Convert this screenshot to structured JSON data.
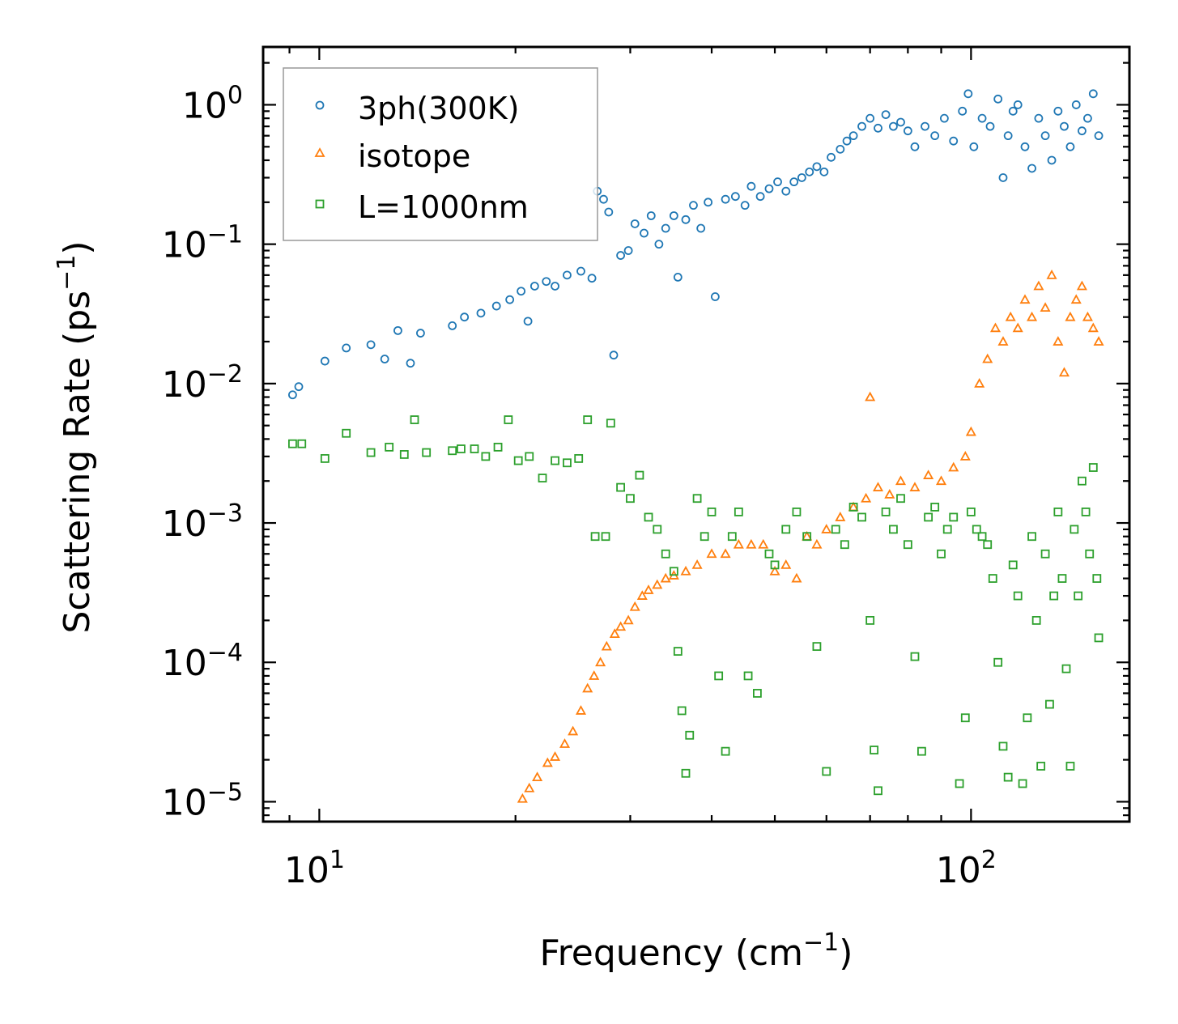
{
  "chart_data": {
    "type": "scatter",
    "title": "",
    "xlabel": "Frequency (cm",
    "xlabel_sup": "−1",
    "xlabel_tail": ")",
    "ylabel": "Scattering Rate (ps",
    "ylabel_sup": "−1",
    "ylabel_tail": ")",
    "xscale": "log",
    "yscale": "log",
    "xlim": [
      8.2,
      175
    ],
    "ylim": [
      7.2e-06,
      2.6
    ],
    "x_ticks": [
      {
        "value": 10,
        "base": "10",
        "exp": "1"
      },
      {
        "value": 100,
        "base": "10",
        "exp": "2"
      }
    ],
    "y_ticks": [
      {
        "value": 1,
        "base": "10",
        "exp": "0"
      },
      {
        "value": 0.1,
        "base": "10",
        "exp": "−1"
      },
      {
        "value": 0.01,
        "base": "10",
        "exp": "−2"
      },
      {
        "value": 0.001,
        "base": "10",
        "exp": "−3"
      },
      {
        "value": 0.0001,
        "base": "10",
        "exp": "−4"
      },
      {
        "value": 1e-05,
        "base": "10",
        "exp": "−5"
      }
    ],
    "legend_position": "top-left",
    "grid": false,
    "series": [
      {
        "name": "3ph(300K)",
        "marker": "circle",
        "color": "#1f77b4",
        "points": [
          [
            9.1,
            0.0083
          ],
          [
            9.3,
            0.0095
          ],
          [
            10.2,
            0.0145
          ],
          [
            11.0,
            0.018
          ],
          [
            12.0,
            0.019
          ],
          [
            12.6,
            0.015
          ],
          [
            13.2,
            0.024
          ],
          [
            13.8,
            0.014
          ],
          [
            14.3,
            0.023
          ],
          [
            16.0,
            0.026
          ],
          [
            16.7,
            0.03
          ],
          [
            17.7,
            0.032
          ],
          [
            18.7,
            0.036
          ],
          [
            19.6,
            0.04
          ],
          [
            20.4,
            0.046
          ],
          [
            20.9,
            0.028
          ],
          [
            21.4,
            0.05
          ],
          [
            22.3,
            0.054
          ],
          [
            23.0,
            0.05
          ],
          [
            24.0,
            0.06
          ],
          [
            25.2,
            0.064
          ],
          [
            26.2,
            0.057
          ],
          [
            26.7,
            0.24
          ],
          [
            27.3,
            0.21
          ],
          [
            27.8,
            0.17
          ],
          [
            28.3,
            0.016
          ],
          [
            29.0,
            0.083
          ],
          [
            29.8,
            0.09
          ],
          [
            30.5,
            0.14
          ],
          [
            31.5,
            0.12
          ],
          [
            32.3,
            0.16
          ],
          [
            33.2,
            0.1
          ],
          [
            34.0,
            0.13
          ],
          [
            35.0,
            0.16
          ],
          [
            35.5,
            0.058
          ],
          [
            36.5,
            0.15
          ],
          [
            37.5,
            0.19
          ],
          [
            38.5,
            0.13
          ],
          [
            39.5,
            0.2
          ],
          [
            40.5,
            0.042
          ],
          [
            42.0,
            0.21
          ],
          [
            43.5,
            0.22
          ],
          [
            45.0,
            0.19
          ],
          [
            46.0,
            0.26
          ],
          [
            47.5,
            0.22
          ],
          [
            49.0,
            0.25
          ],
          [
            50.5,
            0.28
          ],
          [
            52.0,
            0.24
          ],
          [
            53.5,
            0.28
          ],
          [
            55.0,
            0.3
          ],
          [
            56.5,
            0.33
          ],
          [
            58.0,
            0.36
          ],
          [
            59.5,
            0.33
          ],
          [
            61.0,
            0.42
          ],
          [
            63.0,
            0.48
          ],
          [
            64.5,
            0.55
          ],
          [
            66.0,
            0.6
          ],
          [
            68.0,
            0.7
          ],
          [
            70.0,
            0.8
          ],
          [
            72.0,
            0.68
          ],
          [
            74.0,
            0.85
          ],
          [
            76.0,
            0.7
          ],
          [
            78.0,
            0.75
          ],
          [
            80.0,
            0.65
          ],
          [
            82.0,
            0.5
          ],
          [
            85.0,
            0.7
          ],
          [
            88.0,
            0.6
          ],
          [
            91.0,
            0.8
          ],
          [
            94.0,
            0.55
          ],
          [
            97.0,
            0.9
          ],
          [
            99.0,
            1.2
          ],
          [
            101.0,
            0.5
          ],
          [
            104.0,
            0.8
          ],
          [
            107.0,
            0.7
          ],
          [
            110.0,
            1.1
          ],
          [
            112.0,
            0.3
          ],
          [
            114.0,
            0.6
          ],
          [
            116.0,
            0.9
          ],
          [
            118.0,
            1.0
          ],
          [
            121.0,
            0.5
          ],
          [
            124.0,
            0.35
          ],
          [
            127.0,
            0.8
          ],
          [
            130.0,
            0.6
          ],
          [
            133.0,
            0.4
          ],
          [
            136.0,
            0.9
          ],
          [
            139.0,
            0.7
          ],
          [
            142.0,
            0.5
          ],
          [
            145.0,
            1.0
          ],
          [
            148.0,
            0.65
          ],
          [
            151.0,
            0.8
          ],
          [
            154.0,
            1.2
          ],
          [
            157.0,
            0.6
          ]
        ]
      },
      {
        "name": "isotope",
        "marker": "triangle",
        "color": "#ff7f0e",
        "points": [
          [
            20.5,
            1.05e-05
          ],
          [
            21.0,
            1.25e-05
          ],
          [
            21.6,
            1.5e-05
          ],
          [
            22.4,
            1.9e-05
          ],
          [
            23.0,
            2.1e-05
          ],
          [
            23.8,
            2.6e-05
          ],
          [
            24.5,
            3.2e-05
          ],
          [
            25.2,
            4.5e-05
          ],
          [
            25.8,
            6.5e-05
          ],
          [
            26.4,
            8e-05
          ],
          [
            27.0,
            0.0001
          ],
          [
            27.6,
            0.00013
          ],
          [
            28.4,
            0.00016
          ],
          [
            29.0,
            0.00018
          ],
          [
            29.8,
            0.0002
          ],
          [
            30.5,
            0.00025
          ],
          [
            31.3,
            0.0003
          ],
          [
            32.0,
            0.00033
          ],
          [
            33.0,
            0.00036
          ],
          [
            34.0,
            0.0004
          ],
          [
            35.0,
            0.00042
          ],
          [
            36.5,
            0.00045
          ],
          [
            38.0,
            0.0005
          ],
          [
            40.0,
            0.0006
          ],
          [
            42.0,
            0.0006
          ],
          [
            44.0,
            0.0007
          ],
          [
            46.0,
            0.0007
          ],
          [
            48.0,
            0.0007
          ],
          [
            50.0,
            0.00045
          ],
          [
            52.0,
            0.0005
          ],
          [
            54.0,
            0.0004
          ],
          [
            56.0,
            0.0008
          ],
          [
            58.0,
            0.0007
          ],
          [
            60.0,
            0.0009
          ],
          [
            63.0,
            0.0011
          ],
          [
            66.0,
            0.0013
          ],
          [
            69.0,
            0.0015
          ],
          [
            70.0,
            0.008
          ],
          [
            72.0,
            0.0018
          ],
          [
            75.0,
            0.0016
          ],
          [
            78.0,
            0.002
          ],
          [
            82.0,
            0.0018
          ],
          [
            86.0,
            0.0022
          ],
          [
            90.0,
            0.002
          ],
          [
            94.0,
            0.0025
          ],
          [
            98.0,
            0.003
          ],
          [
            100.0,
            0.0045
          ],
          [
            103.0,
            0.01
          ],
          [
            106.0,
            0.015
          ],
          [
            109.0,
            0.025
          ],
          [
            112.0,
            0.02
          ],
          [
            115.0,
            0.03
          ],
          [
            118.0,
            0.025
          ],
          [
            121.0,
            0.04
          ],
          [
            124.0,
            0.03
          ],
          [
            127.0,
            0.05
          ],
          [
            130.0,
            0.035
          ],
          [
            133.0,
            0.06
          ],
          [
            136.0,
            0.02
          ],
          [
            139.0,
            0.012
          ],
          [
            142.0,
            0.03
          ],
          [
            145.0,
            0.04
          ],
          [
            148.0,
            0.05
          ],
          [
            151.0,
            0.03
          ],
          [
            154.0,
            0.025
          ],
          [
            157.0,
            0.02
          ]
        ]
      },
      {
        "name": "L=1000nm",
        "marker": "square",
        "color": "#2ca02c",
        "points": [
          [
            9.1,
            0.0037
          ],
          [
            9.4,
            0.0037
          ],
          [
            10.2,
            0.0029
          ],
          [
            11.0,
            0.0044
          ],
          [
            12.0,
            0.0032
          ],
          [
            12.8,
            0.0035
          ],
          [
            13.5,
            0.0031
          ],
          [
            14.0,
            0.0055
          ],
          [
            14.6,
            0.0032
          ],
          [
            16.0,
            0.0033
          ],
          [
            16.5,
            0.0034
          ],
          [
            17.3,
            0.0034
          ],
          [
            18.0,
            0.003
          ],
          [
            18.8,
            0.0035
          ],
          [
            19.5,
            0.0055
          ],
          [
            20.2,
            0.0028
          ],
          [
            21.0,
            0.003
          ],
          [
            22.0,
            0.0021
          ],
          [
            23.0,
            0.0028
          ],
          [
            24.0,
            0.0027
          ],
          [
            25.0,
            0.0029
          ],
          [
            25.8,
            0.0055
          ],
          [
            26.5,
            0.0008
          ],
          [
            27.5,
            0.0008
          ],
          [
            28.0,
            0.0052
          ],
          [
            29.0,
            0.0018
          ],
          [
            30.0,
            0.0015
          ],
          [
            31.0,
            0.0022
          ],
          [
            32.0,
            0.0011
          ],
          [
            33.0,
            0.0009
          ],
          [
            34.0,
            0.0006
          ],
          [
            35.0,
            0.00045
          ],
          [
            35.5,
            0.00012
          ],
          [
            36.0,
            4.5e-05
          ],
          [
            36.5,
            1.6e-05
          ],
          [
            37.0,
            3e-05
          ],
          [
            38.0,
            0.0015
          ],
          [
            39.0,
            0.0008
          ],
          [
            40.0,
            0.0012
          ],
          [
            41.0,
            8e-05
          ],
          [
            42.0,
            2.3e-05
          ],
          [
            43.0,
            0.0008
          ],
          [
            44.0,
            0.0012
          ],
          [
            45.5,
            8e-05
          ],
          [
            47.0,
            6e-05
          ],
          [
            49.0,
            0.0006
          ],
          [
            50.0,
            0.0005
          ],
          [
            52.0,
            0.0009
          ],
          [
            54.0,
            0.0012
          ],
          [
            56.0,
            0.0008
          ],
          [
            58.0,
            0.00013
          ],
          [
            60.0,
            1.65e-05
          ],
          [
            62.0,
            0.0009
          ],
          [
            64.0,
            0.0007
          ],
          [
            66.0,
            0.0013
          ],
          [
            68.0,
            0.0011
          ],
          [
            70.0,
            0.0002
          ],
          [
            71.0,
            2.35e-05
          ],
          [
            72.0,
            1.2e-05
          ],
          [
            74.0,
            0.0012
          ],
          [
            76.0,
            0.0009
          ],
          [
            78.0,
            0.0015
          ],
          [
            80.0,
            0.0007
          ],
          [
            82.0,
            0.00011
          ],
          [
            84.0,
            2.3e-05
          ],
          [
            86.0,
            0.0011
          ],
          [
            88.0,
            0.0013
          ],
          [
            90.0,
            0.0006
          ],
          [
            92.0,
            0.0009
          ],
          [
            94.0,
            0.0011
          ],
          [
            96.0,
            1.35e-05
          ],
          [
            98.0,
            4e-05
          ],
          [
            100.0,
            0.0012
          ],
          [
            102.0,
            0.0009
          ],
          [
            104.0,
            0.0008
          ],
          [
            106.0,
            0.0007
          ],
          [
            108.0,
            0.0004
          ],
          [
            110.0,
            0.0001
          ],
          [
            112.0,
            2.5e-05
          ],
          [
            114.0,
            1.5e-05
          ],
          [
            116.0,
            0.0005
          ],
          [
            118.0,
            0.0003
          ],
          [
            120.0,
            1.35e-05
          ],
          [
            122.0,
            4e-05
          ],
          [
            124.0,
            0.0008
          ],
          [
            126.0,
            0.0002
          ],
          [
            128.0,
            1.8e-05
          ],
          [
            130.0,
            0.0006
          ],
          [
            132.0,
            5e-05
          ],
          [
            134.0,
            0.0003
          ],
          [
            136.0,
            0.0012
          ],
          [
            138.0,
            0.0004
          ],
          [
            140.0,
            9e-05
          ],
          [
            142.0,
            1.8e-05
          ],
          [
            144.0,
            0.0009
          ],
          [
            146.0,
            0.0003
          ],
          [
            148.0,
            0.002
          ],
          [
            150.0,
            0.0012
          ],
          [
            152.0,
            0.0006
          ],
          [
            154.0,
            0.0025
          ],
          [
            156.0,
            0.0004
          ],
          [
            157.0,
            0.00015
          ]
        ]
      }
    ]
  }
}
